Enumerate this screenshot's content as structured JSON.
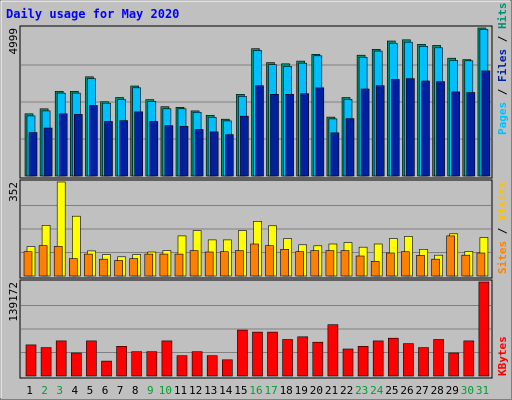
{
  "chart_data": {
    "type": "bar",
    "title": "Daily usage for May 2020",
    "days": [
      "1",
      "2",
      "3",
      "4",
      "5",
      "6",
      "7",
      "8",
      "9",
      "10",
      "11",
      "12",
      "13",
      "14",
      "15",
      "16",
      "17",
      "18",
      "19",
      "20",
      "21",
      "22",
      "23",
      "24",
      "25",
      "26",
      "27",
      "28",
      "29",
      "30",
      "31"
    ],
    "weekend_days": [
      "2",
      "3",
      "9",
      "10",
      "16",
      "17",
      "23",
      "24",
      "30",
      "31"
    ],
    "panels": [
      {
        "id": "hits-files-pages",
        "ymax_label": "4999",
        "ymax": 4999,
        "labels": [
          "Pages",
          "Files",
          "Hits"
        ],
        "series": [
          {
            "name": "Hits",
            "color": "#009070",
            "values": [
              2100,
              2270,
              2860,
              2860,
              3350,
              2510,
              2650,
              3040,
              2580,
              2340,
              2320,
              2200,
              2050,
              1920,
              2760,
              4300,
              3830,
              3790,
              3880,
              4110,
              1990,
              2650,
              4080,
              4280,
              4560,
              4600,
              4450,
              4410,
              3980,
              3930,
              5000
            ]
          },
          {
            "name": "Files",
            "color": "#00bfff",
            "values": [
              2030,
              2200,
              2800,
              2800,
              3290,
              2460,
              2580,
              2980,
              2520,
              2270,
              2270,
              2150,
              1980,
              1860,
              2690,
              4240,
              3760,
              3700,
              3810,
              4060,
              1930,
              2590,
              4010,
              4220,
              4480,
              4520,
              4380,
              4330,
              3900,
              3890,
              4950
            ]
          },
          {
            "name": "Pages",
            "color": "#0020a0",
            "values": [
              1470,
              1620,
              2100,
              2080,
              2380,
              1840,
              1870,
              2170,
              1840,
              1700,
              1680,
              1570,
              1490,
              1400,
              2020,
              3050,
              2760,
              2760,
              2780,
              2980,
              1460,
              1940,
              2940,
              3050,
              3260,
              3290,
              3210,
              3190,
              2840,
              2820,
              3550
            ]
          }
        ]
      },
      {
        "id": "visits-sites",
        "ymax_label": "352",
        "ymax": 352,
        "labels": [
          "Sites",
          "Visits"
        ],
        "series": [
          {
            "name": "Visits",
            "color": "#ffff00",
            "values": [
              110,
              190,
              352,
              224,
              94,
              80,
              72,
              80,
              90,
              95,
              150,
              170,
              135,
              135,
              170,
              205,
              188,
              140,
              117,
              113,
              120,
              125,
              108,
              120,
              140,
              148,
              100,
              78,
              158,
              92,
              144
            ]
          },
          {
            "name": "Sites",
            "color": "#ff8000",
            "values": [
              91,
              114,
              111,
              65,
              82,
              63,
              58,
              65,
              82,
              82,
              82,
              95,
              90,
              91,
              95,
              120,
              114,
              100,
              91,
              95,
              95,
              95,
              75,
              55,
              86,
              91,
              77,
              63,
              150,
              78,
              86
            ]
          }
        ]
      },
      {
        "id": "kbytes",
        "ymax_label": "139172",
        "ymax": 139172,
        "labels": [
          "KBytes"
        ],
        "series": [
          {
            "name": "KBytes",
            "color": "#ff0000",
            "values": [
              46000,
              42000,
              52000,
              34000,
              52000,
              22000,
              44000,
              36000,
              36000,
              52000,
              30000,
              36000,
              30000,
              24000,
              68000,
              65000,
              65000,
              54000,
              58000,
              50000,
              76000,
              40000,
              44000,
              52000,
              56000,
              48000,
              42000,
              54000,
              34000,
              52000,
              139172
            ]
          }
        ]
      }
    ]
  },
  "colors": {
    "background": "#c0c0c0",
    "plot_background": "#c0c0c0",
    "gridline": "#808080",
    "title": "#0000ff",
    "day_weekday": "#000000",
    "day_weekend": "#00a030",
    "label_hits": "#009070",
    "label_files": "#0020a0",
    "label_pages": "#00bfff",
    "label_visits": "#ffc000",
    "label_sites": "#ff8000",
    "label_kbytes": "#ff0000",
    "separator": "#000000"
  }
}
